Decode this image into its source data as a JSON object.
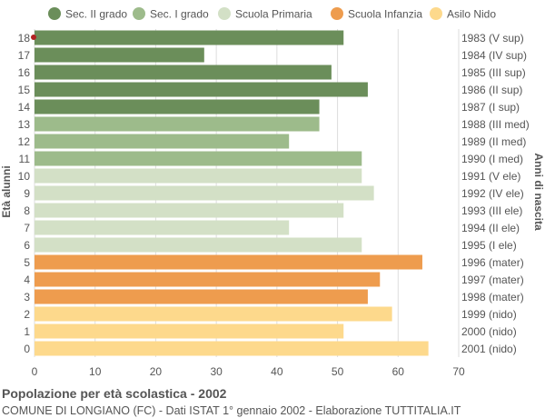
{
  "chart_data": {
    "type": "bar",
    "orientation": "horizontal",
    "ylabel_left": "Età alunni",
    "ylabel_right": "Anni di nascita",
    "xlim": [
      0,
      70
    ],
    "x_ticks": [
      0,
      10,
      20,
      30,
      40,
      50,
      60,
      70
    ],
    "grid": true,
    "legend_position": "top",
    "legend": [
      {
        "name": "Sec. II grado",
        "color": "#6b8e5a"
      },
      {
        "name": "Sec. I grado",
        "color": "#9dbb8b"
      },
      {
        "name": "Scuola Primaria",
        "color": "#d3e0c6"
      },
      {
        "name": "Scuola Infanzia",
        "color": "#ee9c4e"
      },
      {
        "name": "Asilo Nido",
        "color": "#fdd98c"
      }
    ],
    "rows": [
      {
        "age": "18",
        "year": "1983 (V sup)",
        "value": 51,
        "group": 0
      },
      {
        "age": "17",
        "year": "1984 (IV sup)",
        "value": 28,
        "group": 0
      },
      {
        "age": "16",
        "year": "1985 (III sup)",
        "value": 49,
        "group": 0
      },
      {
        "age": "15",
        "year": "1986 (II sup)",
        "value": 55,
        "group": 0
      },
      {
        "age": "14",
        "year": "1987 (I sup)",
        "value": 47,
        "group": 0
      },
      {
        "age": "13",
        "year": "1988 (III med)",
        "value": 47,
        "group": 1
      },
      {
        "age": "12",
        "year": "1989 (II med)",
        "value": 42,
        "group": 1
      },
      {
        "age": "11",
        "year": "1990 (I med)",
        "value": 54,
        "group": 1
      },
      {
        "age": "10",
        "year": "1991 (V ele)",
        "value": 54,
        "group": 2
      },
      {
        "age": "9",
        "year": "1992 (IV ele)",
        "value": 56,
        "group": 2
      },
      {
        "age": "8",
        "year": "1993 (III ele)",
        "value": 51,
        "group": 2
      },
      {
        "age": "7",
        "year": "1994 (II ele)",
        "value": 42,
        "group": 2
      },
      {
        "age": "6",
        "year": "1995 (I ele)",
        "value": 54,
        "group": 2
      },
      {
        "age": "5",
        "year": "1996 (mater)",
        "value": 64,
        "group": 3
      },
      {
        "age": "4",
        "year": "1997 (mater)",
        "value": 57,
        "group": 3
      },
      {
        "age": "3",
        "year": "1998 (mater)",
        "value": 55,
        "group": 3
      },
      {
        "age": "2",
        "year": "1999 (nido)",
        "value": 59,
        "group": 4
      },
      {
        "age": "1",
        "year": "2000 (nido)",
        "value": 51,
        "group": 4
      },
      {
        "age": "0",
        "year": "2001 (nido)",
        "value": 65,
        "group": 4
      }
    ]
  },
  "caption": {
    "title": "Popolazione per età scolastica - 2002",
    "subtitle": "COMUNE DI LONGIANO (FC) - Dati ISTAT 1° gennaio 2002 - Elaborazione TUTTITALIA.IT"
  },
  "colors": {
    "grid": "#dddddd",
    "axis_text": "#555555",
    "marker": "#b22222"
  }
}
